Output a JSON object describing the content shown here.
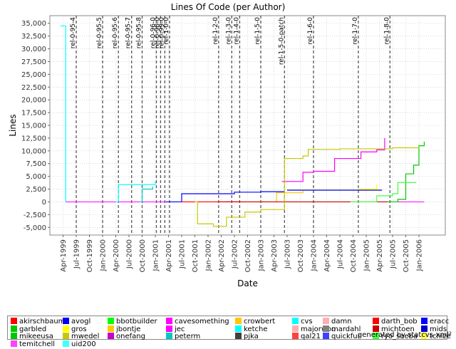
{
  "chart_data": {
    "type": "line",
    "title": "Lines Of Code (per Author)",
    "xlabel": "Date",
    "ylabel": "Lines",
    "x_ticks": [
      "Apr-1999",
      "Jul-1999",
      "Oct-1999",
      "Jan-2000",
      "Apr-2000",
      "Jul-2000",
      "Oct-2000",
      "Jan-2001",
      "Apr-2001",
      "Jul-2001",
      "Oct-2001",
      "Jan-2002",
      "Apr-2002",
      "Jul-2002",
      "Oct-2002",
      "Jan-2003",
      "Apr-2003",
      "Jul-2003",
      "Oct-2003",
      "Jan-2004",
      "Apr-2004",
      "Jul-2004",
      "Oct-2004",
      "Jan-2005",
      "Apr-2005",
      "Jul-2005",
      "Oct-2005",
      "Jan-2006"
    ],
    "y_ticks": [
      "-5,000",
      "-2,500",
      "0",
      "2,500",
      "5,000",
      "7,500",
      "10,000",
      "12,500",
      "15,000",
      "17,500",
      "20,000",
      "22,500",
      "25,000",
      "27,500",
      "30,000",
      "32,500",
      "35,000"
    ],
    "ylim": [
      -6500,
      36500
    ],
    "grid": true,
    "legend_position": "bottom",
    "release_markers": [
      {
        "label": "rel-0-95-4",
        "x": 1999.5
      },
      {
        "label": "rel-0-95-5",
        "x": 2000.0
      },
      {
        "label": "rel-0-95-6",
        "x": 2000.3
      },
      {
        "label": "rel-0-95-7",
        "x": 2000.55
      },
      {
        "label": "rel-0-95-8",
        "x": 2000.75
      },
      {
        "label": "rel-0-96-0",
        "x": 2001.02
      },
      {
        "label": "rel-0-98-0",
        "x": 2001.1
      },
      {
        "label": "rel-0-99-0",
        "x": 2001.18
      },
      {
        "label": "rel-1-0-0",
        "x": 2001.27
      },
      {
        "label": "rel-1-2-0",
        "x": 2002.2
      },
      {
        "label": "rel-1-3-0",
        "x": 2002.45
      },
      {
        "label": "rel-1-4-0",
        "x": 2002.6
      },
      {
        "label": "rel-1-5-0",
        "x": 2003.0
      },
      {
        "label": "rel-1-5-0-patch",
        "x": 2003.45
      },
      {
        "label": "rel-1-6-0",
        "x": 2004.0
      },
      {
        "label": "rel-1-7-0",
        "x": 2004.85
      },
      {
        "label": "rel-1-8-0",
        "x": 2005.45
      }
    ],
    "series": [
      {
        "name": "akirschbaum",
        "color": "#ff0000",
        "points": []
      },
      {
        "name": "avogl",
        "color": "#0000ff",
        "points": [
          [
            2001.2,
            0
          ],
          [
            2001.5,
            1600
          ],
          [
            2002.5,
            1900
          ],
          [
            2003.0,
            2000
          ],
          [
            2003.45,
            2100
          ]
        ]
      },
      {
        "name": "bbotbuilder",
        "color": "#00ff00",
        "points": []
      },
      {
        "name": "cavesomething",
        "color": "#ff00ff",
        "points": [
          [
            2003.4,
            4000
          ],
          [
            2003.8,
            5800
          ],
          [
            2004.0,
            6000
          ],
          [
            2004.4,
            8500
          ],
          [
            2004.9,
            9800
          ],
          [
            2005.2,
            10200
          ],
          [
            2005.35,
            12500
          ]
        ]
      },
      {
        "name": "crowbert",
        "color": "#ffc800",
        "points": [
          [
            2002.3,
            0
          ],
          [
            2003.3,
            1800
          ],
          [
            2003.8,
            2200
          ]
        ]
      },
      {
        "name": "cvs",
        "color": "#00ffff",
        "points": [
          [
            1999.2,
            34500
          ],
          [
            1999.3,
            34500
          ],
          [
            1999.3,
            0
          ]
        ]
      },
      {
        "name": "damn",
        "color": "#ffafaf",
        "points": []
      },
      {
        "name": "darth_bob",
        "color": "#ff0000",
        "points": [
          [
            2001.5,
            0
          ],
          [
            2002.6,
            200
          ]
        ]
      },
      {
        "name": "eracc",
        "color": "#0000ff",
        "points": []
      },
      {
        "name": "garbled",
        "color": "#00c800",
        "points": []
      },
      {
        "name": "gros",
        "color": "#ffff00",
        "points": [
          [
            2004.85,
            2500
          ],
          [
            2005.2,
            3400
          ]
        ]
      },
      {
        "name": "jbontje",
        "color": "#ffc800",
        "points": []
      },
      {
        "name": "jec",
        "color": "#ff00ff",
        "points": []
      },
      {
        "name": "ketche",
        "color": "#00ffff",
        "points": [
          [
            2000.25,
            0
          ],
          [
            2000.3,
            3400
          ],
          [
            2000.95,
            3400
          ],
          [
            2001.0,
            4000
          ]
        ]
      },
      {
        "name": "majorwoo",
        "color": "#ffafaf",
        "points": []
      },
      {
        "name": "mardahl",
        "color": "#808080",
        "points": []
      },
      {
        "name": "michtoen",
        "color": "#c80000",
        "points": [
          [
            2002.2,
            0
          ],
          [
            2005.5,
            0
          ]
        ]
      },
      {
        "name": "mids",
        "color": "#0000c8",
        "points": [
          [
            2003.5,
            2300
          ],
          [
            2005.3,
            2300
          ]
        ]
      },
      {
        "name": "mikeeusa",
        "color": "#00c800",
        "points": [
          [
            2005.4,
            0
          ],
          [
            2005.6,
            500
          ],
          [
            2005.75,
            5500
          ],
          [
            2005.9,
            7200
          ],
          [
            2006.0,
            11000
          ],
          [
            2006.1,
            11800
          ]
        ]
      },
      {
        "name": "mwedel",
        "color": "#c8c800",
        "points": [
          [
            2001.75,
            0
          ],
          [
            2001.8,
            -4300
          ],
          [
            2002.1,
            -4800
          ],
          [
            2002.35,
            -3000
          ],
          [
            2002.7,
            -2000
          ],
          [
            2003.0,
            -1500
          ],
          [
            2003.45,
            -1000
          ],
          [
            2003.45,
            8500
          ],
          [
            2003.8,
            9000
          ],
          [
            2003.9,
            10300
          ],
          [
            2004.5,
            10400
          ],
          [
            2005.5,
            10600
          ],
          [
            2006.0,
            10800
          ]
        ]
      },
      {
        "name": "onefang",
        "color": "#c800c8",
        "points": []
      },
      {
        "name": "peterm",
        "color": "#00c8c8",
        "points": [
          [
            2000.7,
            0
          ],
          [
            2000.75,
            2500
          ],
          [
            2000.95,
            3000
          ]
        ]
      },
      {
        "name": "pjka",
        "color": "#404040",
        "points": []
      },
      {
        "name": "qal21",
        "color": "#ff4040",
        "points": []
      },
      {
        "name": "quickfur",
        "color": "#4040ff",
        "points": []
      },
      {
        "name": "ryo_saeba",
        "color": "#40ff40",
        "points": [
          [
            2004.7,
            0
          ],
          [
            2005.2,
            1200
          ],
          [
            2005.5,
            1600
          ],
          [
            2005.6,
            3800
          ],
          [
            2005.95,
            3800
          ]
        ]
      },
      {
        "name": "tchize",
        "color": "#ffff40",
        "points": []
      },
      {
        "name": "temitchell",
        "color": "#ff40ff",
        "points": []
      },
      {
        "name": "uid200",
        "color": "#40ffff",
        "points": []
      }
    ]
  },
  "footer": "generated by statcvs-xml²"
}
